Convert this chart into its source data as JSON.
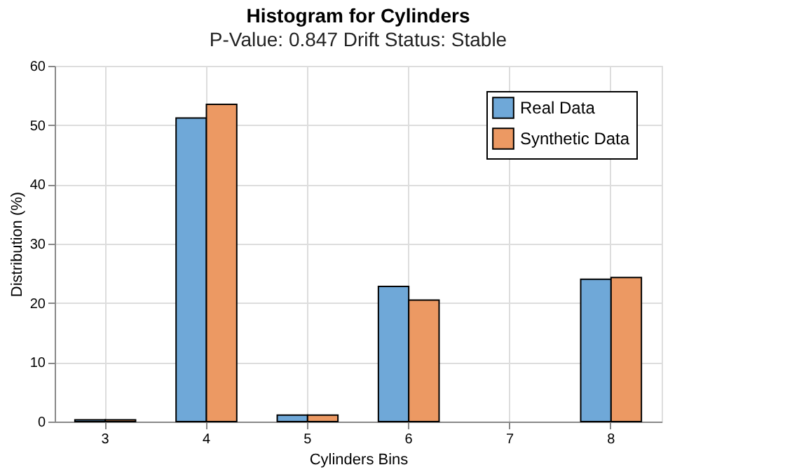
{
  "chart_data": {
    "type": "bar",
    "title": "Histogram for Cylinders",
    "subtitle": "P-Value: 0.847 Drift Status: Stable",
    "xlabel": "Cylinders Bins",
    "ylabel": "Distribution (%)",
    "categories": [
      "3",
      "4",
      "5",
      "6",
      "7",
      "8"
    ],
    "series": [
      {
        "name": "Real Data",
        "color": "#6fa8d8",
        "values": [
          0.3,
          51.2,
          1.1,
          22.8,
          null,
          24.0
        ]
      },
      {
        "name": "Synthetic Data",
        "color": "#ec9963",
        "values": [
          0.3,
          53.5,
          1.1,
          20.5,
          null,
          24.3
        ]
      }
    ],
    "ylim": [
      0,
      60
    ],
    "yticks": [
      0,
      10,
      20,
      30,
      40,
      50,
      60
    ],
    "grid": true,
    "legend": "top right"
  }
}
